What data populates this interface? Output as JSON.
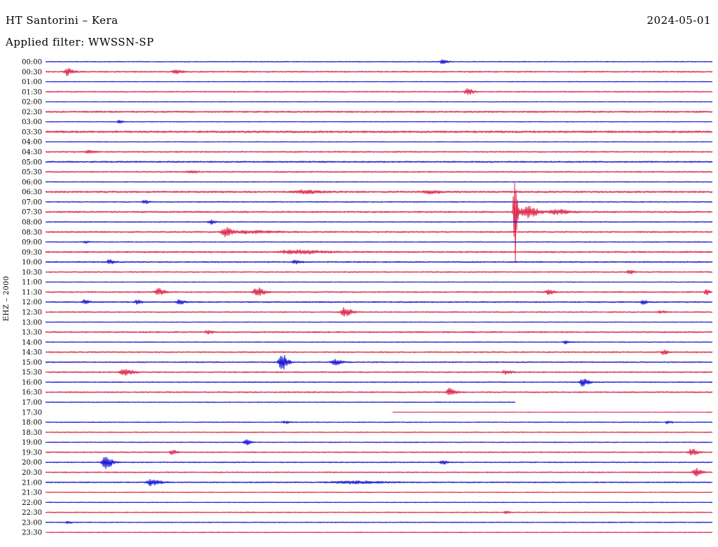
{
  "header": {
    "station_title": "HT Santorini – Kera",
    "date": "2024-05-01",
    "filter": "Applied filter: WWSSN-SP"
  },
  "axis": {
    "channel_label": "EHZ – 2000"
  },
  "chart_data": {
    "type": "line",
    "title": "Helicorder drum plot, station HT Santorini – Kera, 2024-05-01, filter WWSSN-SP",
    "row_interval_minutes": 30,
    "time_range": [
      "00:00",
      "23:30"
    ],
    "trace_colors": {
      "blue": "#0000cd",
      "red": "#dc143c"
    },
    "rows": [
      {
        "time": "00:00",
        "color": "blue",
        "noise": 0.7,
        "events": [
          {
            "x": 0.595,
            "amp": 3.5,
            "w": 0.008
          }
        ]
      },
      {
        "time": "00:30",
        "color": "red",
        "noise": 1.0,
        "events": [
          {
            "x": 0.032,
            "amp": 5,
            "w": 0.01
          },
          {
            "x": 0.195,
            "amp": 2.5,
            "w": 0.012
          }
        ]
      },
      {
        "time": "01:00",
        "color": "blue",
        "noise": 0.6,
        "events": []
      },
      {
        "time": "01:30",
        "color": "red",
        "noise": 0.9,
        "events": [
          {
            "x": 0.632,
            "amp": 4,
            "w": 0.01
          }
        ]
      },
      {
        "time": "02:00",
        "color": "blue",
        "noise": 0.6,
        "events": []
      },
      {
        "time": "02:30",
        "color": "red",
        "noise": 1.2,
        "events": []
      },
      {
        "time": "03:00",
        "color": "blue",
        "noise": 0.6,
        "events": [
          {
            "x": 0.11,
            "amp": 2.5,
            "w": 0.006
          }
        ]
      },
      {
        "time": "03:30",
        "color": "red",
        "noise": 1.5,
        "events": []
      },
      {
        "time": "04:00",
        "color": "blue",
        "noise": 0.6,
        "events": []
      },
      {
        "time": "04:30",
        "color": "red",
        "noise": 1.0,
        "events": [
          {
            "x": 0.063,
            "amp": 2,
            "w": 0.01
          }
        ]
      },
      {
        "time": "05:00",
        "color": "blue",
        "noise": 1.1,
        "events": []
      },
      {
        "time": "05:30",
        "color": "red",
        "noise": 1.0,
        "events": [
          {
            "x": 0.216,
            "amp": 2,
            "w": 0.012
          }
        ]
      },
      {
        "time": "06:00",
        "color": "blue",
        "noise": 0.7,
        "events": []
      },
      {
        "time": "06:30",
        "color": "red",
        "noise": 1.3,
        "events": [
          {
            "x": 0.384,
            "amp": 2,
            "w": 0.03
          },
          {
            "x": 0.574,
            "amp": 2,
            "w": 0.02
          }
        ]
      },
      {
        "time": "07:00",
        "color": "blue",
        "noise": 0.8,
        "events": [
          {
            "x": 0.147,
            "amp": 2.5,
            "w": 0.008
          }
        ]
      },
      {
        "time": "07:30",
        "color": "red",
        "noise": 1.2,
        "events": [
          {
            "x": 0.703,
            "amp": 85,
            "w": 0.0045
          },
          {
            "x": 0.72,
            "amp": 9,
            "w": 0.018
          },
          {
            "x": 0.765,
            "amp": 3,
            "w": 0.025
          }
        ]
      },
      {
        "time": "08:00",
        "color": "blue",
        "noise": 0.8,
        "events": [
          {
            "x": 0.247,
            "amp": 3,
            "w": 0.008
          }
        ]
      },
      {
        "time": "08:30",
        "color": "red",
        "noise": 1.1,
        "events": [
          {
            "x": 0.268,
            "amp": 6.5,
            "w": 0.012
          },
          {
            "x": 0.3,
            "amp": 2,
            "w": 0.05
          }
        ]
      },
      {
        "time": "09:00",
        "color": "blue",
        "noise": 0.7,
        "events": [
          {
            "x": 0.058,
            "amp": 2,
            "w": 0.006
          }
        ]
      },
      {
        "time": "09:30",
        "color": "red",
        "noise": 1.2,
        "events": [
          {
            "x": 0.37,
            "amp": 2.5,
            "w": 0.045
          }
        ]
      },
      {
        "time": "10:00",
        "color": "blue",
        "noise": 1.0,
        "events": [
          {
            "x": 0.095,
            "amp": 3,
            "w": 0.01
          },
          {
            "x": 0.374,
            "amp": 2.5,
            "w": 0.01
          }
        ]
      },
      {
        "time": "10:30",
        "color": "red",
        "noise": 0.9,
        "events": [
          {
            "x": 0.874,
            "amp": 3,
            "w": 0.008
          }
        ]
      },
      {
        "time": "11:00",
        "color": "blue",
        "noise": 0.6,
        "events": []
      },
      {
        "time": "11:30",
        "color": "red",
        "noise": 1.0,
        "events": [
          {
            "x": 0.168,
            "amp": 6,
            "w": 0.01
          },
          {
            "x": 0.316,
            "amp": 7,
            "w": 0.012
          },
          {
            "x": 0.753,
            "amp": 3,
            "w": 0.01
          },
          {
            "x": 0.99,
            "amp": 4,
            "w": 0.006
          }
        ]
      },
      {
        "time": "12:00",
        "color": "blue",
        "noise": 1.0,
        "events": [
          {
            "x": 0.058,
            "amp": 3,
            "w": 0.008
          },
          {
            "x": 0.137,
            "amp": 3,
            "w": 0.008
          },
          {
            "x": 0.2,
            "amp": 3.5,
            "w": 0.008
          },
          {
            "x": 0.895,
            "amp": 2.5,
            "w": 0.008
          }
        ]
      },
      {
        "time": "12:30",
        "color": "red",
        "noise": 0.9,
        "events": [
          {
            "x": 0.447,
            "amp": 7,
            "w": 0.012
          },
          {
            "x": 0.921,
            "amp": 2,
            "w": 0.008
          }
        ]
      },
      {
        "time": "13:00",
        "color": "blue",
        "noise": 0.6,
        "events": []
      },
      {
        "time": "13:30",
        "color": "red",
        "noise": 1.1,
        "events": [
          {
            "x": 0.242,
            "amp": 2.5,
            "w": 0.008
          }
        ]
      },
      {
        "time": "14:00",
        "color": "blue",
        "noise": 0.7,
        "events": [
          {
            "x": 0.779,
            "amp": 2,
            "w": 0.008
          }
        ]
      },
      {
        "time": "14:30",
        "color": "red",
        "noise": 1.0,
        "events": [
          {
            "x": 0.926,
            "amp": 3,
            "w": 0.008
          }
        ]
      },
      {
        "time": "15:00",
        "color": "blue",
        "noise": 0.9,
        "events": [
          {
            "x": 0.353,
            "amp": 13,
            "w": 0.01
          },
          {
            "x": 0.432,
            "amp": 4,
            "w": 0.012
          }
        ]
      },
      {
        "time": "15:30",
        "color": "red",
        "noise": 1.0,
        "events": [
          {
            "x": 0.116,
            "amp": 5,
            "w": 0.015
          },
          {
            "x": 0.689,
            "amp": 2.5,
            "w": 0.01
          }
        ]
      },
      {
        "time": "16:00",
        "color": "blue",
        "noise": 0.8,
        "events": [
          {
            "x": 0.805,
            "amp": 6,
            "w": 0.01
          }
        ]
      },
      {
        "time": "16:30",
        "color": "red",
        "noise": 1.0,
        "events": [
          {
            "x": 0.605,
            "amp": 5,
            "w": 0.01
          }
        ]
      },
      {
        "time": "17:00",
        "color": "blue",
        "noise": 0.7,
        "span": [
          0,
          0.705
        ],
        "events": []
      },
      {
        "time": "17:30",
        "color": "red",
        "noise": 0.5,
        "span": [
          0.52,
          1
        ],
        "events": []
      },
      {
        "time": "18:00",
        "color": "blue",
        "noise": 0.7,
        "events": [
          {
            "x": 0.358,
            "amp": 1.5,
            "w": 0.01
          },
          {
            "x": 0.932,
            "amp": 2,
            "w": 0.008
          }
        ]
      },
      {
        "time": "18:30",
        "color": "red",
        "noise": 0.8,
        "events": []
      },
      {
        "time": "19:00",
        "color": "blue",
        "noise": 0.7,
        "events": [
          {
            "x": 0.3,
            "amp": 4,
            "w": 0.008
          }
        ]
      },
      {
        "time": "19:30",
        "color": "red",
        "noise": 0.9,
        "events": [
          {
            "x": 0.189,
            "amp": 3.5,
            "w": 0.008
          },
          {
            "x": 0.968,
            "amp": 5,
            "w": 0.01
          }
        ]
      },
      {
        "time": "20:00",
        "color": "blue",
        "noise": 0.8,
        "events": [
          {
            "x": 0.089,
            "amp": 9,
            "w": 0.012
          },
          {
            "x": 0.595,
            "amp": 3.5,
            "w": 0.008
          }
        ]
      },
      {
        "time": "20:30",
        "color": "red",
        "noise": 0.9,
        "events": [
          {
            "x": 0.974,
            "amp": 6,
            "w": 0.01
          }
        ]
      },
      {
        "time": "21:00",
        "color": "blue",
        "noise": 0.9,
        "events": [
          {
            "x": 0.158,
            "amp": 5,
            "w": 0.015
          },
          {
            "x": 0.45,
            "amp": 1.8,
            "w": 0.06
          }
        ]
      },
      {
        "time": "21:30",
        "color": "red",
        "noise": 0.7,
        "events": []
      },
      {
        "time": "22:00",
        "color": "blue",
        "noise": 0.6,
        "events": []
      },
      {
        "time": "22:30",
        "color": "red",
        "noise": 0.8,
        "events": [
          {
            "x": 0.689,
            "amp": 2.5,
            "w": 0.006
          }
        ]
      },
      {
        "time": "23:00",
        "color": "blue",
        "noise": 0.7,
        "events": [
          {
            "x": 0.032,
            "amp": 2.5,
            "w": 0.006
          }
        ]
      },
      {
        "time": "23:30",
        "color": "red",
        "noise": 0.7,
        "events": []
      }
    ]
  }
}
